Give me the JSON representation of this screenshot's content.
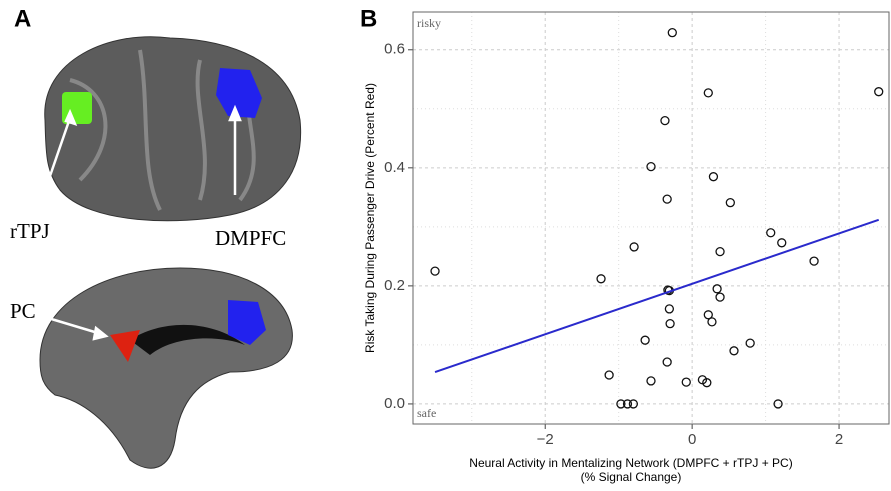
{
  "panel_a": {
    "label": "A",
    "regions": {
      "rtpj": "rTPJ",
      "dmpfc": "DMPFC",
      "pc": "PC"
    }
  },
  "chart_data": {
    "type": "scatter",
    "panel_label": "B",
    "xlabel": [
      "Neural Activity in Mentalizing Network (DMPFC + rTPJ + PC)",
      "(% Signal Change)"
    ],
    "ylabel": "Risk Taking During Passenger Drive (Percent Red)",
    "annotations": {
      "top": "risky",
      "bottom": "safe"
    },
    "x": [
      -3.5,
      -1.24,
      -0.27,
      0.22,
      2.54,
      -0.37,
      -0.56,
      0.29,
      -0.34,
      0.52,
      -0.79,
      0.38,
      1.07,
      1.22,
      1.66,
      -0.33,
      -0.31,
      0.34,
      0.38,
      -0.31,
      0.22,
      0.27,
      -0.3,
      -0.64,
      0.79,
      0.57,
      -0.34,
      -1.13,
      -0.56,
      -0.08,
      0.14,
      0.2,
      -0.97,
      -0.88,
      -0.8,
      1.17
    ],
    "values": [
      0.225,
      0.212,
      0.629,
      0.527,
      0.529,
      0.48,
      0.402,
      0.385,
      0.347,
      0.341,
      0.266,
      0.258,
      0.29,
      0.273,
      0.242,
      0.193,
      0.192,
      0.195,
      0.181,
      0.161,
      0.151,
      0.139,
      0.136,
      0.108,
      0.103,
      0.09,
      0.071,
      0.049,
      0.039,
      0.037,
      0.041,
      0.036,
      0,
      0,
      0,
      0
    ],
    "fit_line": {
      "x": [
        -3.5,
        2.54
      ],
      "y": [
        0.054,
        0.312
      ],
      "color": "#2a2acc"
    },
    "xlim": [
      -3.8,
      2.68
    ],
    "ylim": [
      -0.034,
      0.664
    ],
    "xticks": [
      {
        "value": -2,
        "label": "−2"
      },
      0,
      2
    ],
    "yticks": [
      {
        "value": 0,
        "label": "0.0"
      },
      0.2,
      0.4,
      0.6
    ],
    "minor_xticks": [
      -3,
      -1,
      1
    ],
    "minor_yticks": [
      0.1,
      0.3,
      0.5
    ],
    "grid": true
  }
}
